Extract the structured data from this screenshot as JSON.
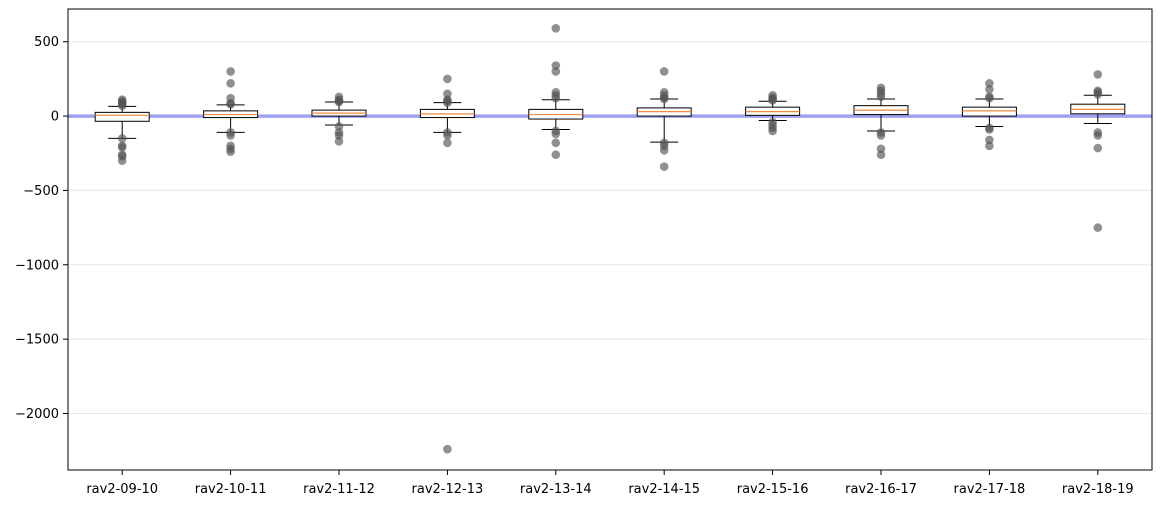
{
  "chart_data": {
    "type": "box",
    "title": "",
    "xlabel": "",
    "ylabel": "",
    "ylim": [
      -2380,
      720
    ],
    "yticks": [
      500,
      0,
      -500,
      -1000,
      -1500,
      -2000
    ],
    "ytick_labels": [
      "500",
      "0",
      "−500",
      "−1000",
      "−1500",
      "−2000"
    ],
    "grid": "horizontal",
    "reference_line": {
      "y": 0,
      "color": "#a0a0f0"
    },
    "colors": {
      "median": "#f08a3c",
      "box_fill": "#ffffff",
      "outlier": "#555555",
      "grid": "#e8e8e8"
    },
    "categories": [
      "rav2-09-10",
      "rav2-10-11",
      "rav2-11-12",
      "rav2-12-13",
      "rav2-13-14",
      "rav2-14-15",
      "rav2-15-16",
      "rav2-16-17",
      "rav2-17-18",
      "rav2-18-19"
    ],
    "boxes": [
      {
        "q1": -35,
        "median": 5,
        "q3": 25,
        "whisker_low": -150,
        "whisker_high": 65,
        "outliers": [
          70,
          80,
          90,
          100,
          110,
          -150,
          -200,
          -210,
          -260,
          -270,
          -300
        ]
      },
      {
        "q1": -10,
        "median": 10,
        "q3": 35,
        "whisker_low": -110,
        "whisker_high": 75,
        "outliers": [
          80,
          85,
          120,
          220,
          300,
          -110,
          -130,
          -200,
          -220,
          -240
        ]
      },
      {
        "q1": 0,
        "median": 20,
        "q3": 40,
        "whisker_low": -60,
        "whisker_high": 95,
        "outliers": [
          95,
          100,
          110,
          130,
          -70,
          -110,
          -130,
          -170
        ]
      },
      {
        "q1": -10,
        "median": 15,
        "q3": 45,
        "whisker_low": -110,
        "whisker_high": 90,
        "outliers": [
          90,
          100,
          110,
          150,
          250,
          -110,
          -130,
          -180,
          -2240
        ]
      },
      {
        "q1": -20,
        "median": 10,
        "q3": 45,
        "whisker_low": -90,
        "whisker_high": 110,
        "outliers": [
          120,
          140,
          160,
          300,
          340,
          590,
          -100,
          -120,
          -180,
          -260
        ]
      },
      {
        "q1": 0,
        "median": 30,
        "q3": 55,
        "whisker_low": -175,
        "whisker_high": 115,
        "outliers": [
          115,
          125,
          140,
          160,
          300,
          -180,
          -200,
          -230,
          -340
        ]
      },
      {
        "q1": 5,
        "median": 30,
        "q3": 60,
        "whisker_low": -30,
        "whisker_high": 100,
        "outliers": [
          105,
          115,
          125,
          140,
          -40,
          -60,
          -80,
          -100
        ]
      },
      {
        "q1": 10,
        "median": 40,
        "q3": 70,
        "whisker_low": -100,
        "whisker_high": 115,
        "outliers": [
          130,
          150,
          170,
          190,
          -110,
          -130,
          -220,
          -260
        ]
      },
      {
        "q1": 0,
        "median": 35,
        "q3": 60,
        "whisker_low": -70,
        "whisker_high": 115,
        "outliers": [
          120,
          130,
          180,
          220,
          -80,
          -90,
          -160,
          -200
        ]
      },
      {
        "q1": 15,
        "median": 45,
        "q3": 80,
        "whisker_low": -50,
        "whisker_high": 140,
        "outliers": [
          145,
          160,
          170,
          280,
          -110,
          -130,
          -215,
          -750
        ]
      }
    ]
  }
}
